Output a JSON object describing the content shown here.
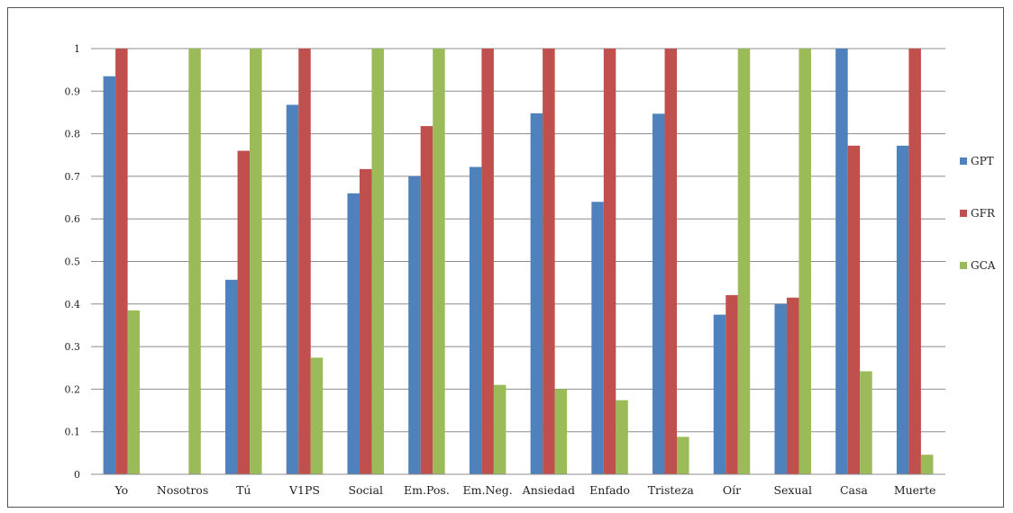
{
  "chart_data": {
    "type": "bar",
    "title": "",
    "xlabel": "",
    "ylabel": "",
    "ylim": [
      0,
      1
    ],
    "yticks": [
      "0",
      "0.1",
      "0.2",
      "0.3",
      "0.4",
      "0.5",
      "0.6",
      "0.7",
      "0.8",
      "0.9",
      "1"
    ],
    "grid": true,
    "legend_position": "right",
    "categories": [
      "Yo",
      "Nosotros",
      "Tú",
      "V1PS",
      "Social",
      "Em.Pos.",
      "Em.Neg.",
      "Ansiedad",
      "Enfado",
      "Tristeza",
      "Oír",
      "Sexual",
      "Casa",
      "Muerte"
    ],
    "series": [
      {
        "name": "GPT",
        "color": "#4f81bd",
        "values": [
          0.935,
          0,
          0.457,
          0.868,
          0.66,
          0.7,
          0.722,
          0.848,
          0.64,
          0.847,
          0.375,
          0.4,
          1.0,
          0.772
        ]
      },
      {
        "name": "GFR",
        "color": "#c0504d",
        "values": [
          1.0,
          0,
          0.76,
          1.0,
          0.717,
          0.818,
          1.0,
          1.0,
          1.0,
          1.0,
          0.421,
          0.415,
          0.772,
          1.0
        ]
      },
      {
        "name": "GCA",
        "color": "#9bbb59",
        "values": [
          0.385,
          1.0,
          1.0,
          0.274,
          1.0,
          1.0,
          0.21,
          0.2,
          0.174,
          0.088,
          1.0,
          1.0,
          0.242,
          0.046
        ]
      }
    ]
  }
}
